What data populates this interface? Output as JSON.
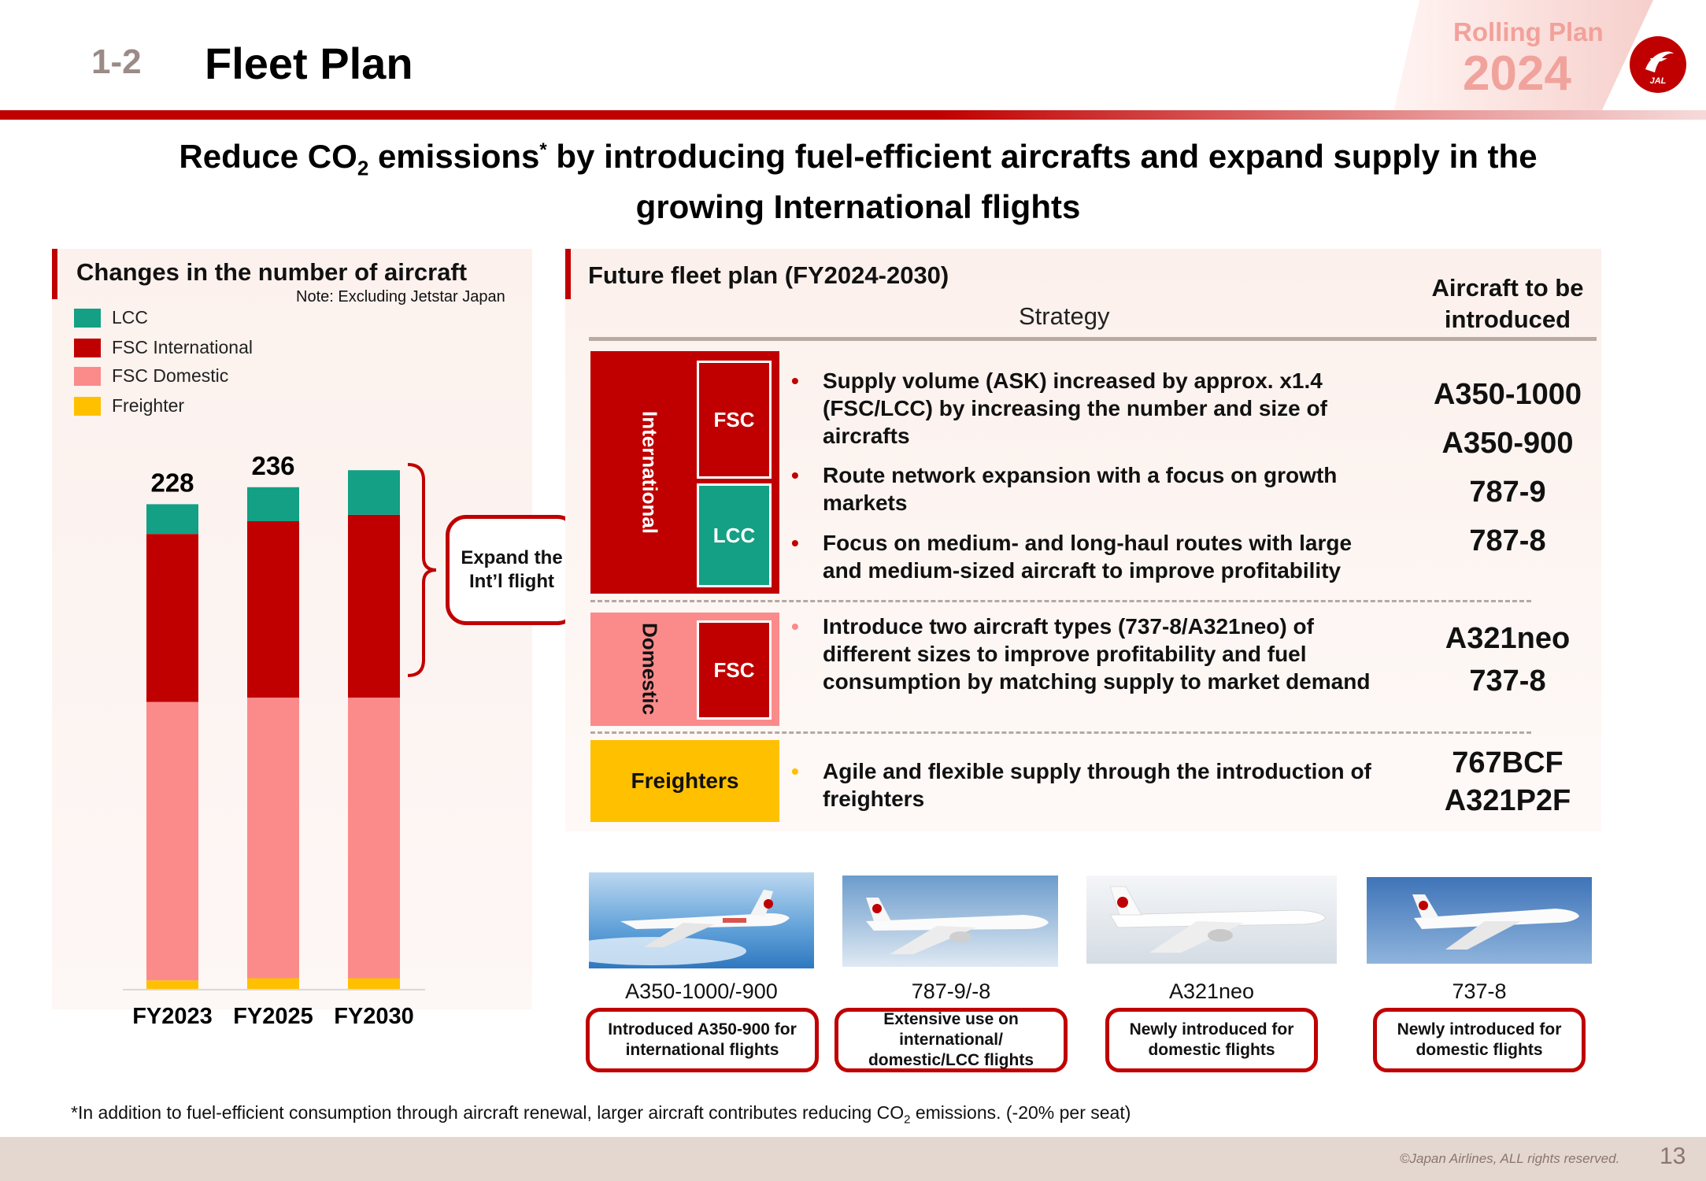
{
  "header": {
    "section_number": "1-2",
    "title": "Fleet Plan",
    "rolling_plan": "Rolling Plan",
    "rolling_year": "2024",
    "logo_text": "JAL"
  },
  "headline": {
    "part1": "Reduce CO",
    "sub": "2",
    "part2": " emissions",
    "sup": "*",
    "part3": " by introducing fuel-efficient aircrafts and expand supply in the growing International flights"
  },
  "left_panel": {
    "title": "Changes in the number of aircraft",
    "note": "Note: Excluding Jetstar Japan",
    "expand_label": "Expand the Int’l flight"
  },
  "chart_data": {
    "type": "bar",
    "stacked": true,
    "categories": [
      "FY2023",
      "FY2025",
      "FY2030"
    ],
    "totals": [
      228,
      236,
      null
    ],
    "series": [
      {
        "name": "Freighter",
        "color": "#ffc000",
        "values": [
          4,
          5,
          5
        ]
      },
      {
        "name": "FSC Domestic",
        "color": "#fb8b8b",
        "values": [
          131,
          132,
          132
        ]
      },
      {
        "name": "FSC International",
        "color": "#c00000",
        "values": [
          79,
          83,
          86
        ]
      },
      {
        "name": "LCC",
        "color": "#13a085",
        "values": [
          14,
          16,
          21
        ]
      }
    ],
    "legend_order": [
      "LCC",
      "FSC International",
      "FSC Domestic",
      "Freighter"
    ],
    "legend_position": "top-left",
    "ylim": [
      0,
      260
    ],
    "grid": false
  },
  "right_panel": {
    "title": "Future fleet plan (FY2024-2030)",
    "strategy_header": "Strategy",
    "aircraft_header": "Aircraft to be introduced",
    "international": {
      "label": "International",
      "fsc": "FSC",
      "lcc": "LCC",
      "bullets": [
        "Supply volume (ASK) increased by approx. x1.4 (FSC/LCC) by increasing the number and size of aircrafts",
        "Route network expansion with a focus on growth markets",
        "Focus on medium- and long-haul routes with large and medium-sized aircraft to improve profitability"
      ],
      "aircraft": [
        "A350-1000",
        "A350-900",
        "787-9",
        "787-8"
      ]
    },
    "domestic": {
      "label": "Domestic",
      "fsc": "FSC",
      "bullets": [
        "Introduce two aircraft types (737-8/A321neo) of different sizes to improve profitability and fuel consumption by matching supply to market demand"
      ],
      "aircraft": [
        "A321neo",
        "737-8"
      ]
    },
    "freighters": {
      "label": "Freighters",
      "bullets": [
        "Agile and flexible supply through the introduction of freighters"
      ],
      "aircraft": [
        "767BCF",
        "A321P2F"
      ]
    }
  },
  "photos": [
    {
      "caption": "A350-1000/-900",
      "note": "Introduced A350-900 for international flights"
    },
    {
      "caption": "787-9/-8",
      "note": "Extensive use on international/ domestic/LCC flights"
    },
    {
      "caption": "A321neo",
      "note": "Newly introduced for domestic flights"
    },
    {
      "caption": "737-8",
      "note": "Newly introduced for domestic flights"
    }
  ],
  "footnote": {
    "part1": "*In addition to fuel-efficient consumption through aircraft renewal, larger aircraft contributes reducing CO",
    "sub": "2",
    "part2": " emissions. (-20% per seat)"
  },
  "footer": {
    "copyright": "©Japan Airlines, ALL rights reserved.",
    "page_number": "13"
  }
}
